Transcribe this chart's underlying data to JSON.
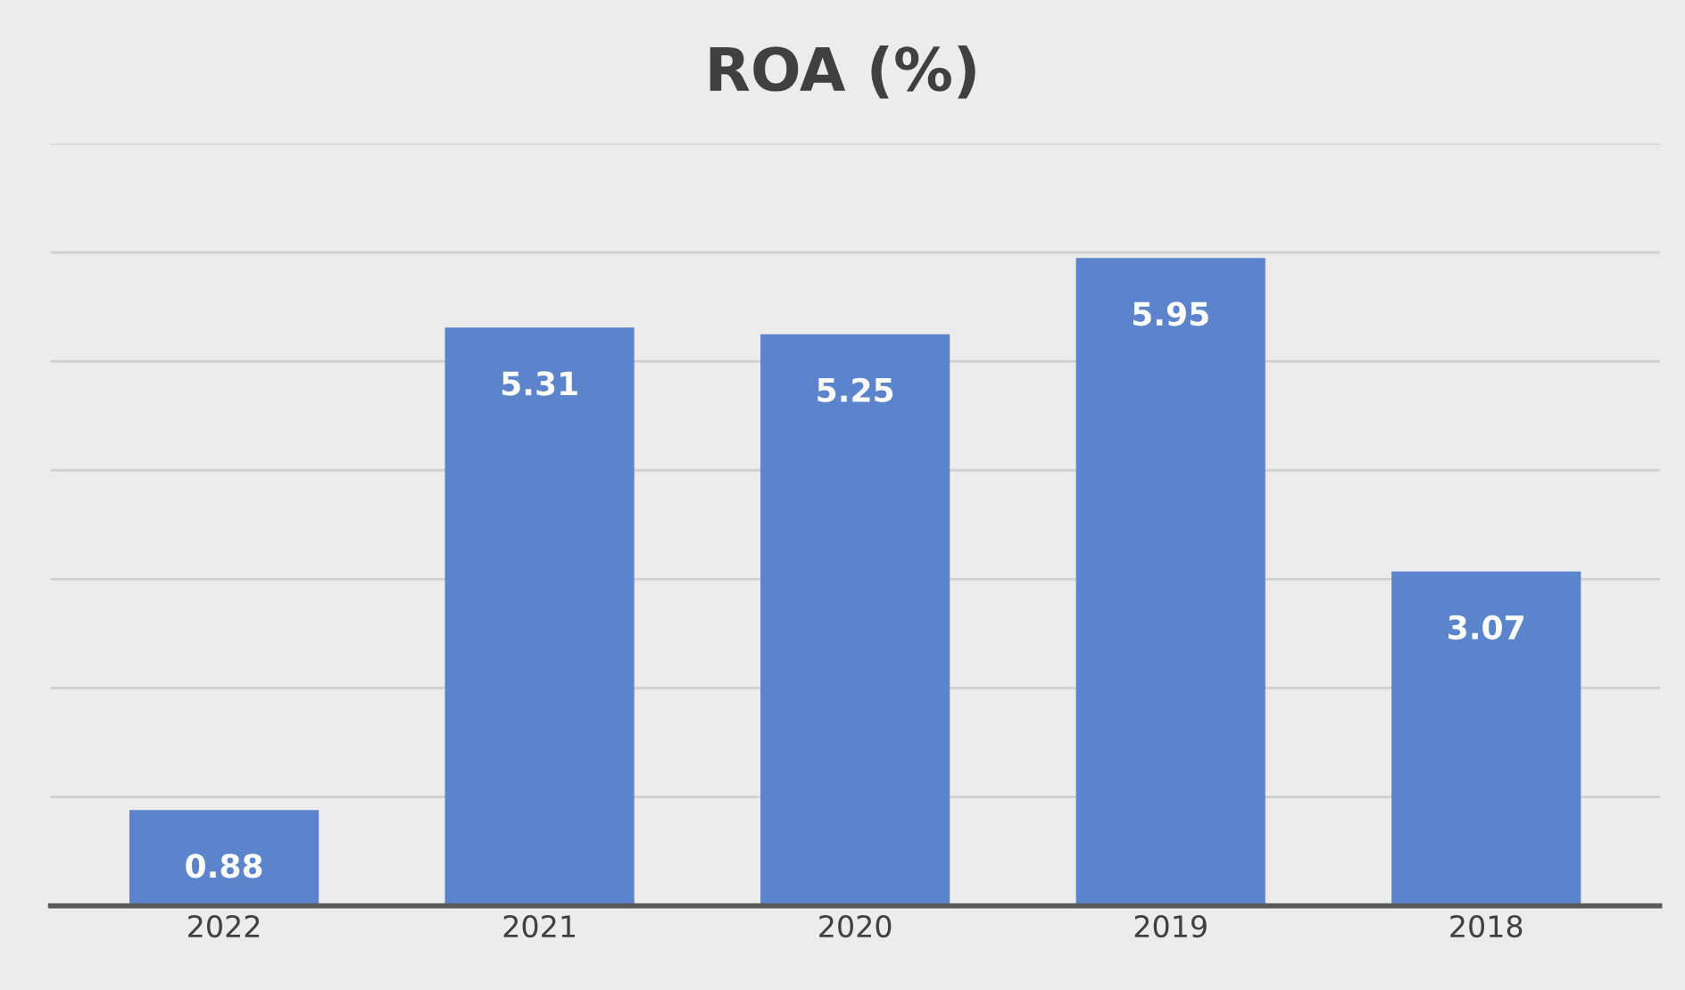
{
  "chart_data": {
    "type": "bar",
    "title": "ROA (%)",
    "categories": [
      "2022",
      "2021",
      "2020",
      "2019",
      "2018"
    ],
    "values": [
      0.88,
      5.31,
      5.25,
      5.95,
      3.07
    ],
    "color": "#5b84cc",
    "ylim": [
      0,
      7
    ],
    "yticks": [
      {
        "value": 0,
        "label": null
      },
      {
        "value": 1,
        "label": null
      },
      {
        "value": 2,
        "label": null
      },
      {
        "value": 3,
        "label": null
      },
      {
        "value": 4,
        "label": null
      },
      {
        "value": 5,
        "label": null
      },
      {
        "value": 6,
        "label": null
      },
      {
        "value": 7,
        "label": null
      }
    ],
    "grid": "y",
    "data_labels": true,
    "tick_labels": "x"
  }
}
